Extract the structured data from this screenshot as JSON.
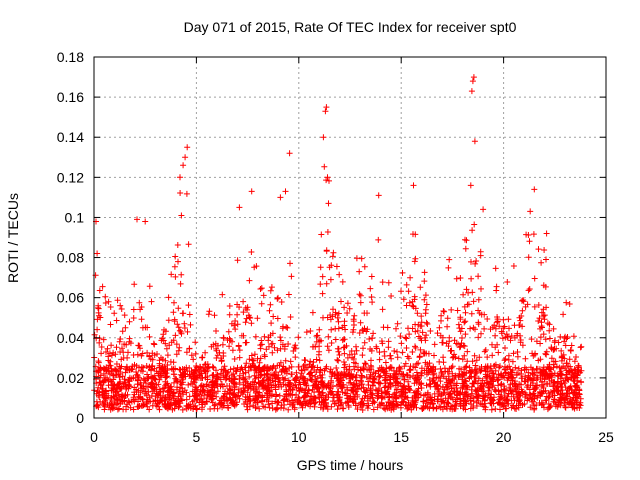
{
  "chart_data": {
    "type": "scatter",
    "title": "Day 071 of 2015, Rate Of TEC Index for receiver spt0",
    "xlabel": "GPS time / hours",
    "ylabel": "ROTI / TECUs",
    "xlim": [
      0,
      25
    ],
    "ylim": [
      0,
      0.18
    ],
    "x_ticks": [
      0,
      5,
      10,
      15,
      20,
      25
    ],
    "y_ticks": [
      0,
      0.02,
      0.04,
      0.06,
      0.08,
      0.1,
      0.12,
      0.14,
      0.16,
      0.18
    ],
    "x_tick_labels": [
      "0",
      "5",
      "10",
      "15",
      "20",
      "25"
    ],
    "y_tick_labels": [
      "0",
      "0.02",
      "0.04",
      "0.06",
      "0.08",
      "0.1",
      "0.12",
      "0.14",
      "0.16",
      "0.18"
    ],
    "grid": true,
    "legend": "none",
    "marker": "plus",
    "color": "#ff0000",
    "envelope": {
      "x": [
        0.0,
        0.2,
        0.5,
        1.0,
        1.5,
        2.0,
        2.2,
        2.5,
        3.0,
        3.5,
        4.0,
        4.3,
        4.5,
        5.0,
        5.5,
        6.0,
        6.5,
        7.0,
        7.5,
        7.8,
        8.5,
        9.0,
        9.3,
        9.6,
        10.0,
        10.5,
        11.0,
        11.3,
        11.6,
        12.0,
        12.5,
        13.0,
        13.5,
        14.0,
        14.5,
        15.0,
        15.5,
        16.0,
        16.5,
        17.0,
        17.5,
        18.0,
        18.3,
        18.6,
        19.0,
        19.5,
        20.0,
        20.5,
        21.0,
        21.3,
        21.6,
        22.0,
        22.5,
        23.0,
        23.5,
        23.8
      ],
      "y": [
        0.055,
        0.09,
        0.055,
        0.05,
        0.06,
        0.065,
        0.09,
        0.075,
        0.05,
        0.045,
        0.09,
        0.12,
        0.115,
        0.05,
        0.045,
        0.055,
        0.06,
        0.08,
        0.1,
        0.075,
        0.06,
        0.07,
        0.1,
        0.09,
        0.035,
        0.04,
        0.07,
        0.15,
        0.1,
        0.07,
        0.08,
        0.075,
        0.065,
        0.09,
        0.06,
        0.065,
        0.09,
        0.08,
        0.06,
        0.08,
        0.075,
        0.08,
        0.1,
        0.12,
        0.09,
        0.075,
        0.07,
        0.075,
        0.09,
        0.1,
        0.085,
        0.08,
        0.055,
        0.06,
        0.04,
        0.03
      ]
    },
    "highlight_points": [
      {
        "x": 0.1,
        "y": 0.098
      },
      {
        "x": 0.15,
        "y": 0.082
      },
      {
        "x": 2.1,
        "y": 0.099
      },
      {
        "x": 2.5,
        "y": 0.098
      },
      {
        "x": 4.2,
        "y": 0.12
      },
      {
        "x": 4.35,
        "y": 0.126
      },
      {
        "x": 4.45,
        "y": 0.13
      },
      {
        "x": 4.55,
        "y": 0.135
      },
      {
        "x": 7.1,
        "y": 0.105
      },
      {
        "x": 7.7,
        "y": 0.113
      },
      {
        "x": 9.1,
        "y": 0.11
      },
      {
        "x": 9.35,
        "y": 0.113
      },
      {
        "x": 9.55,
        "y": 0.132
      },
      {
        "x": 11.2,
        "y": 0.14
      },
      {
        "x": 11.3,
        "y": 0.153
      },
      {
        "x": 11.35,
        "y": 0.155
      },
      {
        "x": 11.4,
        "y": 0.12
      },
      {
        "x": 11.45,
        "y": 0.107
      },
      {
        "x": 13.9,
        "y": 0.111
      },
      {
        "x": 15.6,
        "y": 0.116
      },
      {
        "x": 18.4,
        "y": 0.116
      },
      {
        "x": 18.45,
        "y": 0.163
      },
      {
        "x": 18.5,
        "y": 0.168
      },
      {
        "x": 18.55,
        "y": 0.17
      },
      {
        "x": 18.6,
        "y": 0.138
      },
      {
        "x": 19.0,
        "y": 0.104
      },
      {
        "x": 21.3,
        "y": 0.103
      },
      {
        "x": 21.5,
        "y": 0.114
      },
      {
        "x": 22.1,
        "y": 0.092
      },
      {
        "x": 23.7,
        "y": 0.005
      }
    ],
    "series_note_points": 3200
  }
}
